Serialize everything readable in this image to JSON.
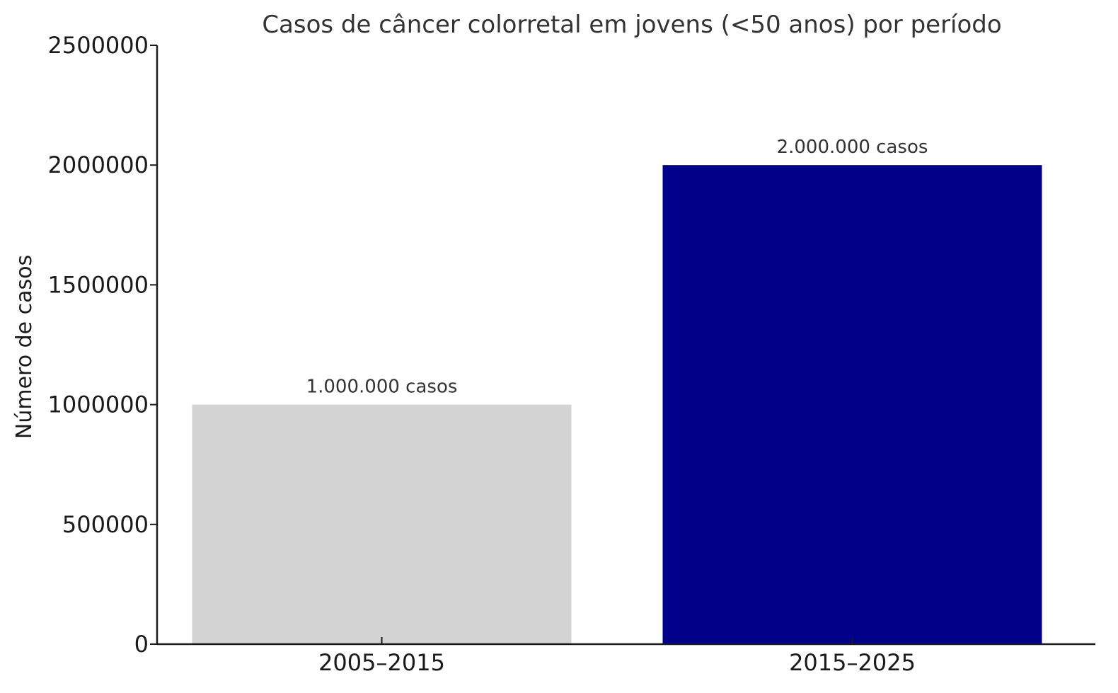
{
  "chart_data": {
    "type": "bar",
    "title": "Casos de câncer colorretal em jovens (<50 anos) por período",
    "xlabel": "",
    "ylabel": "Número de casos",
    "categories": [
      "2005–2015",
      "2015–2025"
    ],
    "values": [
      1000000,
      2000000
    ],
    "data_labels": [
      "1.000.000 casos",
      "2.000.000 casos"
    ],
    "colors": [
      "#d3d3d3",
      "#00008b"
    ],
    "ylim": [
      0,
      2500000
    ],
    "yticks": [
      0,
      500000,
      1000000,
      1500000,
      2000000,
      2500000
    ],
    "ytick_labels": [
      "0",
      "500000",
      "1000000",
      "1500000",
      "2000000",
      "2500000"
    ],
    "grid": false,
    "axis_color": "#1a1a1a"
  }
}
